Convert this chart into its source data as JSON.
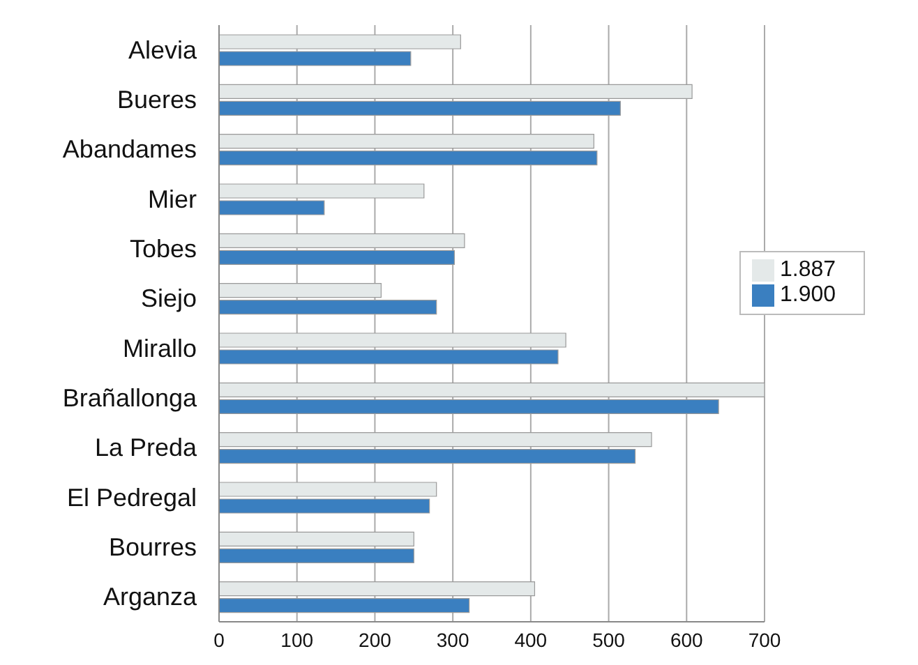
{
  "chart_data": {
    "type": "bar",
    "orientation": "horizontal",
    "categories": [
      "Alevia",
      "Bueres",
      "Abandames",
      "Mier",
      "Tobes",
      "Siejo",
      "Mirallo",
      "Brañallonga",
      "La Preda",
      "El Pedregal",
      "Bourres",
      "Arganza"
    ],
    "series": [
      {
        "name": "1.887",
        "color": "#e4e9e9",
        "values": [
          310,
          607,
          481,
          263,
          315,
          208,
          445,
          700,
          555,
          279,
          250,
          405
        ]
      },
      {
        "name": "1.900",
        "color": "#3a7fc0",
        "values": [
          246,
          515,
          485,
          135,
          302,
          279,
          435,
          641,
          534,
          270,
          250,
          321
        ]
      }
    ],
    "xlim": [
      0,
      700
    ],
    "xticks": [
      0,
      100,
      200,
      300,
      400,
      500,
      600,
      700
    ],
    "grid": "x",
    "legend": "right"
  }
}
